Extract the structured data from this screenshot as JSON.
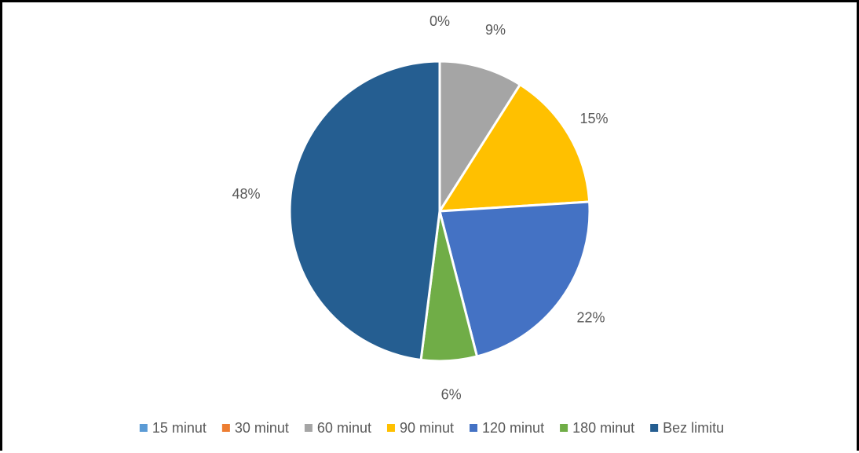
{
  "chart_data": {
    "type": "pie",
    "title": "",
    "start_angle_deg": 0,
    "direction": "clockwise",
    "categories": [
      "15 minut",
      "30 minut",
      "60 minut",
      "90 minut",
      "120 minut",
      "180 minut",
      "Bez limitu"
    ],
    "values": [
      0,
      0,
      9,
      15,
      22,
      6,
      48
    ],
    "data_labels": [
      "",
      "0%",
      "9%",
      "15%",
      "22%",
      "6%",
      "48%"
    ],
    "colors": [
      "#5B9BD5",
      "#ED7D31",
      "#A5A5A5",
      "#FFC000",
      "#4472C4",
      "#70AD47",
      "#255E91"
    ],
    "legend": {
      "placement": "bottom",
      "entries": [
        "15 minut",
        "30 minut",
        "60 minut",
        "90 minut",
        "120 minut",
        "180 minut",
        "Bez limitu"
      ]
    }
  }
}
